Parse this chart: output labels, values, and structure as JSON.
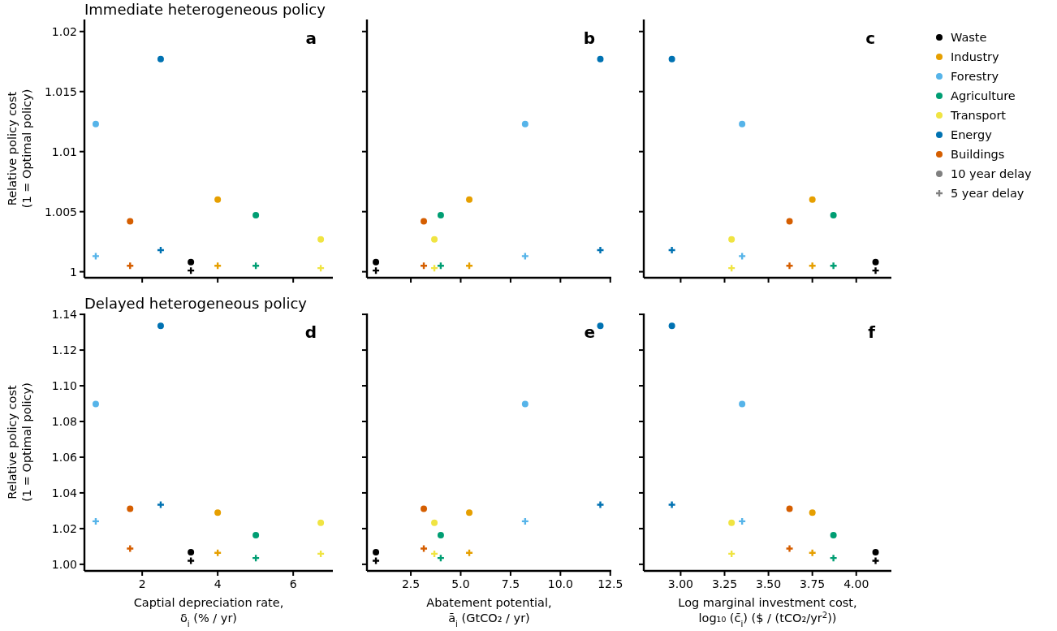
{
  "chart_data": [
    {
      "type": "scatter",
      "title": "Immediate heterogeneous policy",
      "ylabel": "Relative policy cost\n(1 = Optimal policy)",
      "annotations": [
        "a"
      ],
      "xlim": [
        0.47,
        7.05
      ],
      "xticks": [
        2,
        4,
        6
      ],
      "ylim": [
        0.9995,
        1.021
      ],
      "yticks": [
        1,
        1.005,
        1.01,
        1.015,
        1.02
      ],
      "tick_labels": "y",
      "legend": "right",
      "series": [
        {
          "name": "Waste",
          "color": "#000000",
          "marker": "circle",
          "x": [
            3.29
          ],
          "values": [
            1.0008
          ]
        },
        {
          "name": "Industry",
          "color": "#e69f00",
          "marker": "circle",
          "x": [
            4.0
          ],
          "values": [
            1.006
          ]
        },
        {
          "name": "Forestry",
          "color": "#56b4e9",
          "marker": "circle",
          "x": [
            0.77
          ],
          "values": [
            1.0123
          ]
        },
        {
          "name": "Agriculture",
          "color": "#009e73",
          "marker": "circle",
          "x": [
            5.01
          ],
          "values": [
            1.0047
          ]
        },
        {
          "name": "Transport",
          "color": "#f0e442",
          "marker": "circle",
          "x": [
            6.73
          ],
          "values": [
            1.0027
          ]
        },
        {
          "name": "Energy",
          "color": "#0072b2",
          "marker": "circle",
          "x": [
            2.49
          ],
          "values": [
            1.0177
          ]
        },
        {
          "name": "Buildings",
          "color": "#d55e00",
          "marker": "circle",
          "x": [
            1.68
          ],
          "values": [
            1.0042
          ]
        },
        {
          "name": "10 year delay",
          "color": "#808080",
          "marker": "circle"
        },
        {
          "name": "5 year delay",
          "color": "#808080",
          "marker": "cross"
        },
        {
          "color": "#000000",
          "marker": "cross",
          "x": [
            3.29
          ],
          "values": [
            1.0001
          ]
        },
        {
          "color": "#e69f00",
          "marker": "cross",
          "x": [
            4.0
          ],
          "values": [
            1.0005
          ]
        },
        {
          "color": "#56b4e9",
          "marker": "cross",
          "x": [
            0.77
          ],
          "values": [
            1.0013
          ]
        },
        {
          "color": "#009e73",
          "marker": "cross",
          "x": [
            5.01
          ],
          "values": [
            1.0005
          ]
        },
        {
          "color": "#f0e442",
          "marker": "cross",
          "x": [
            6.73
          ],
          "values": [
            1.0003
          ]
        },
        {
          "color": "#0072b2",
          "marker": "cross",
          "x": [
            2.49
          ],
          "values": [
            1.0018
          ]
        },
        {
          "color": "#d55e00",
          "marker": "cross",
          "x": [
            1.68
          ],
          "values": [
            1.0005
          ]
        }
      ]
    },
    {
      "type": "scatter",
      "annotations": [
        "b"
      ],
      "xlim": [
        0.3,
        12.55
      ],
      "xticks": [
        2.5,
        5,
        7.5,
        10,
        12.5
      ],
      "ylim": [
        0.9995,
        1.021
      ],
      "yticks": [
        1,
        1.005,
        1.01,
        1.015,
        1.02
      ],
      "tick_labels": false,
      "series": [
        {
          "color": "#000000",
          "marker": "circle",
          "x": [
            0.75
          ],
          "values": [
            1.0008
          ]
        },
        {
          "color": "#e69f00",
          "marker": "circle",
          "x": [
            5.43
          ],
          "values": [
            1.006
          ]
        },
        {
          "color": "#56b4e9",
          "marker": "circle",
          "x": [
            8.23
          ],
          "values": [
            1.0123
          ]
        },
        {
          "color": "#009e73",
          "marker": "circle",
          "x": [
            4.0
          ],
          "values": [
            1.0047
          ]
        },
        {
          "color": "#f0e442",
          "marker": "circle",
          "x": [
            3.68
          ],
          "values": [
            1.0027
          ]
        },
        {
          "color": "#0072b2",
          "marker": "circle",
          "x": [
            12.0
          ],
          "values": [
            1.0177
          ]
        },
        {
          "color": "#d55e00",
          "marker": "circle",
          "x": [
            3.15
          ],
          "values": [
            1.0042
          ]
        },
        {
          "color": "#000000",
          "marker": "cross",
          "x": [
            0.75
          ],
          "values": [
            1.0001
          ]
        },
        {
          "color": "#e69f00",
          "marker": "cross",
          "x": [
            5.43
          ],
          "values": [
            1.0005
          ]
        },
        {
          "color": "#56b4e9",
          "marker": "cross",
          "x": [
            8.23
          ],
          "values": [
            1.0013
          ]
        },
        {
          "color": "#009e73",
          "marker": "cross",
          "x": [
            4.0
          ],
          "values": [
            1.0005
          ]
        },
        {
          "color": "#f0e442",
          "marker": "cross",
          "x": [
            3.68
          ],
          "values": [
            1.0003
          ]
        },
        {
          "color": "#0072b2",
          "marker": "cross",
          "x": [
            12.0
          ],
          "values": [
            1.0018
          ]
        },
        {
          "color": "#d55e00",
          "marker": "cross",
          "x": [
            3.15
          ],
          "values": [
            1.0005
          ]
        }
      ]
    },
    {
      "type": "scatter",
      "annotations": [
        "c"
      ],
      "xlim": [
        2.79,
        4.2
      ],
      "xticks": [
        3,
        3.25,
        3.5,
        3.75,
        4
      ],
      "ylim": [
        0.9995,
        1.021
      ],
      "yticks": [
        1,
        1.005,
        1.01,
        1.015,
        1.02
      ],
      "tick_labels": false,
      "series": [
        {
          "color": "#000000",
          "marker": "circle",
          "x": [
            4.11
          ],
          "values": [
            1.0008
          ]
        },
        {
          "color": "#e69f00",
          "marker": "circle",
          "x": [
            3.75
          ],
          "values": [
            1.006
          ]
        },
        {
          "color": "#56b4e9",
          "marker": "circle",
          "x": [
            3.35
          ],
          "values": [
            1.0123
          ]
        },
        {
          "color": "#009e73",
          "marker": "circle",
          "x": [
            3.87
          ],
          "values": [
            1.0047
          ]
        },
        {
          "color": "#f0e442",
          "marker": "circle",
          "x": [
            3.29
          ],
          "values": [
            1.0027
          ]
        },
        {
          "color": "#0072b2",
          "marker": "circle",
          "x": [
            2.95
          ],
          "values": [
            1.0177
          ]
        },
        {
          "color": "#d55e00",
          "marker": "circle",
          "x": [
            3.62
          ],
          "values": [
            1.0042
          ]
        },
        {
          "color": "#000000",
          "marker": "cross",
          "x": [
            4.11
          ],
          "values": [
            1.0001
          ]
        },
        {
          "color": "#e69f00",
          "marker": "cross",
          "x": [
            3.75
          ],
          "values": [
            1.0005
          ]
        },
        {
          "color": "#56b4e9",
          "marker": "cross",
          "x": [
            3.35
          ],
          "values": [
            1.0013
          ]
        },
        {
          "color": "#009e73",
          "marker": "cross",
          "x": [
            3.87
          ],
          "values": [
            1.0005
          ]
        },
        {
          "color": "#f0e442",
          "marker": "cross",
          "x": [
            3.29
          ],
          "values": [
            1.0003
          ]
        },
        {
          "color": "#0072b2",
          "marker": "cross",
          "x": [
            2.95
          ],
          "values": [
            1.0018
          ]
        },
        {
          "color": "#d55e00",
          "marker": "cross",
          "x": [
            3.62
          ],
          "values": [
            1.0005
          ]
        }
      ]
    },
    {
      "type": "scatter",
      "title": "Delayed heterogeneous policy",
      "ylabel": "Relative policy cost\n(1 = Optimal policy)",
      "xlabel": "Captial depreciation rate,\nδ$_{i}$ (% / yr)",
      "annotations": [
        "d"
      ],
      "xlim": [
        0.47,
        7.05
      ],
      "xticks": [
        2,
        4,
        6
      ],
      "ylim": [
        0.9963,
        1.1405
      ],
      "yticks": [
        {
          "value": 1,
          "label": "1.00"
        },
        {
          "value": 1.02,
          "label": "1.02"
        },
        {
          "value": 1.04,
          "label": "1.04"
        },
        {
          "value": 1.06,
          "label": "1.06"
        },
        {
          "value": 1.08,
          "label": "1.08"
        },
        {
          "value": 1.1,
          "label": "1.10"
        },
        {
          "value": 1.12,
          "label": "1.12"
        },
        {
          "value": 1.14,
          "label": "1.14"
        }
      ],
      "series": [
        {
          "color": "#000000",
          "marker": "circle",
          "x": [
            3.29
          ],
          "values": [
            1.0068
          ]
        },
        {
          "color": "#e69f00",
          "marker": "circle",
          "x": [
            4.0
          ],
          "values": [
            1.0289
          ]
        },
        {
          "color": "#56b4e9",
          "marker": "circle",
          "x": [
            0.77
          ],
          "values": [
            1.0898
          ]
        },
        {
          "color": "#009e73",
          "marker": "circle",
          "x": [
            5.01
          ],
          "values": [
            1.0163
          ]
        },
        {
          "color": "#f0e442",
          "marker": "circle",
          "x": [
            6.73
          ],
          "values": [
            1.0233
          ]
        },
        {
          "color": "#0072b2",
          "marker": "circle",
          "x": [
            2.49
          ],
          "values": [
            1.1336
          ]
        },
        {
          "color": "#d55e00",
          "marker": "circle",
          "x": [
            1.68
          ],
          "values": [
            1.0311
          ]
        },
        {
          "color": "#000000",
          "marker": "cross",
          "x": [
            3.29
          ],
          "values": [
            1.002
          ]
        },
        {
          "color": "#e69f00",
          "marker": "cross",
          "x": [
            4.0
          ],
          "values": [
            1.0064
          ]
        },
        {
          "color": "#56b4e9",
          "marker": "cross",
          "x": [
            0.77
          ],
          "values": [
            1.0241
          ]
        },
        {
          "color": "#009e73",
          "marker": "cross",
          "x": [
            5.01
          ],
          "values": [
            1.0035
          ]
        },
        {
          "color": "#f0e442",
          "marker": "cross",
          "x": [
            6.73
          ],
          "values": [
            1.0059
          ]
        },
        {
          "color": "#0072b2",
          "marker": "cross",
          "x": [
            2.49
          ],
          "values": [
            1.0334
          ]
        },
        {
          "color": "#d55e00",
          "marker": "cross",
          "x": [
            1.68
          ],
          "values": [
            1.0088
          ]
        }
      ]
    },
    {
      "type": "scatter",
      "xlabel": "Abatement potential,\nā$_{i}$ (GtCO₂ / yr)",
      "annotations": [
        "e"
      ],
      "xlim": [
        0.3,
        12.55
      ],
      "xticks": [
        {
          "value": 2.5,
          "label": "2.5"
        },
        {
          "value": 5,
          "label": "5.0"
        },
        {
          "value": 7.5,
          "label": "7.5"
        },
        {
          "value": 10,
          "label": "10.0"
        },
        {
          "value": 12.5,
          "label": "12.5"
        }
      ],
      "ylim": [
        0.9963,
        1.1405
      ],
      "yticks": [
        1,
        1.02,
        1.04,
        1.06,
        1.08,
        1.1,
        1.12,
        1.14
      ],
      "tick_labels": "x",
      "series": [
        {
          "color": "#000000",
          "marker": "circle",
          "x": [
            0.75
          ],
          "values": [
            1.0068
          ]
        },
        {
          "color": "#e69f00",
          "marker": "circle",
          "x": [
            5.43
          ],
          "values": [
            1.0289
          ]
        },
        {
          "color": "#56b4e9",
          "marker": "circle",
          "x": [
            8.23
          ],
          "values": [
            1.0898
          ]
        },
        {
          "color": "#009e73",
          "marker": "circle",
          "x": [
            4.0
          ],
          "values": [
            1.0163
          ]
        },
        {
          "color": "#f0e442",
          "marker": "circle",
          "x": [
            3.68
          ],
          "values": [
            1.0233
          ]
        },
        {
          "color": "#0072b2",
          "marker": "circle",
          "x": [
            12.0
          ],
          "values": [
            1.1336
          ]
        },
        {
          "color": "#d55e00",
          "marker": "circle",
          "x": [
            3.15
          ],
          "values": [
            1.0311
          ]
        },
        {
          "color": "#000000",
          "marker": "cross",
          "x": [
            0.75
          ],
          "values": [
            1.002
          ]
        },
        {
          "color": "#e69f00",
          "marker": "cross",
          "x": [
            5.43
          ],
          "values": [
            1.0064
          ]
        },
        {
          "color": "#56b4e9",
          "marker": "cross",
          "x": [
            8.23
          ],
          "values": [
            1.0241
          ]
        },
        {
          "color": "#009e73",
          "marker": "cross",
          "x": [
            4.0
          ],
          "values": [
            1.0035
          ]
        },
        {
          "color": "#f0e442",
          "marker": "cross",
          "x": [
            3.68
          ],
          "values": [
            1.0059
          ]
        },
        {
          "color": "#0072b2",
          "marker": "cross",
          "x": [
            12.0
          ],
          "values": [
            1.0334
          ]
        },
        {
          "color": "#d55e00",
          "marker": "cross",
          "x": [
            3.15
          ],
          "values": [
            1.0088
          ]
        }
      ]
    },
    {
      "type": "scatter",
      "xlabel": "Log marginal investment cost,\nlog₁₀ (c̄$_{i}$) ($ / (tCO₂/yr$^{2}$))",
      "annotations": [
        "f"
      ],
      "xlim": [
        2.79,
        4.2
      ],
      "xticks": [
        {
          "value": 3,
          "label": "3.00"
        },
        {
          "value": 3.25,
          "label": "3.25"
        },
        {
          "value": 3.5,
          "label": "3.50"
        },
        {
          "value": 3.75,
          "label": "3.75"
        },
        {
          "value": 4,
          "label": "4.00"
        }
      ],
      "ylim": [
        0.9963,
        1.1405
      ],
      "yticks": [
        1,
        1.02,
        1.04,
        1.06,
        1.08,
        1.1,
        1.12,
        1.14
      ],
      "tick_labels": "x",
      "series": [
        {
          "color": "#000000",
          "marker": "circle",
          "x": [
            4.11
          ],
          "values": [
            1.0068
          ]
        },
        {
          "color": "#e69f00",
          "marker": "circle",
          "x": [
            3.75
          ],
          "values": [
            1.0289
          ]
        },
        {
          "color": "#56b4e9",
          "marker": "circle",
          "x": [
            3.35
          ],
          "values": [
            1.0898
          ]
        },
        {
          "color": "#009e73",
          "marker": "circle",
          "x": [
            3.87
          ],
          "values": [
            1.0163
          ]
        },
        {
          "color": "#f0e442",
          "marker": "circle",
          "x": [
            3.29
          ],
          "values": [
            1.0233
          ]
        },
        {
          "color": "#0072b2",
          "marker": "circle",
          "x": [
            2.95
          ],
          "values": [
            1.1336
          ]
        },
        {
          "color": "#d55e00",
          "marker": "circle",
          "x": [
            3.62
          ],
          "values": [
            1.0311
          ]
        },
        {
          "color": "#000000",
          "marker": "cross",
          "x": [
            4.11
          ],
          "values": [
            1.002
          ]
        },
        {
          "color": "#e69f00",
          "marker": "cross",
          "x": [
            3.75
          ],
          "values": [
            1.0064
          ]
        },
        {
          "color": "#56b4e9",
          "marker": "cross",
          "x": [
            3.35
          ],
          "values": [
            1.0241
          ]
        },
        {
          "color": "#009e73",
          "marker": "cross",
          "x": [
            3.87
          ],
          "values": [
            1.0035
          ]
        },
        {
          "color": "#f0e442",
          "marker": "cross",
          "x": [
            3.29
          ],
          "values": [
            1.0059
          ]
        },
        {
          "color": "#0072b2",
          "marker": "cross",
          "x": [
            2.95
          ],
          "values": [
            1.0334
          ]
        },
        {
          "color": "#d55e00",
          "marker": "cross",
          "x": [
            3.62
          ],
          "values": [
            1.0088
          ]
        }
      ]
    }
  ]
}
